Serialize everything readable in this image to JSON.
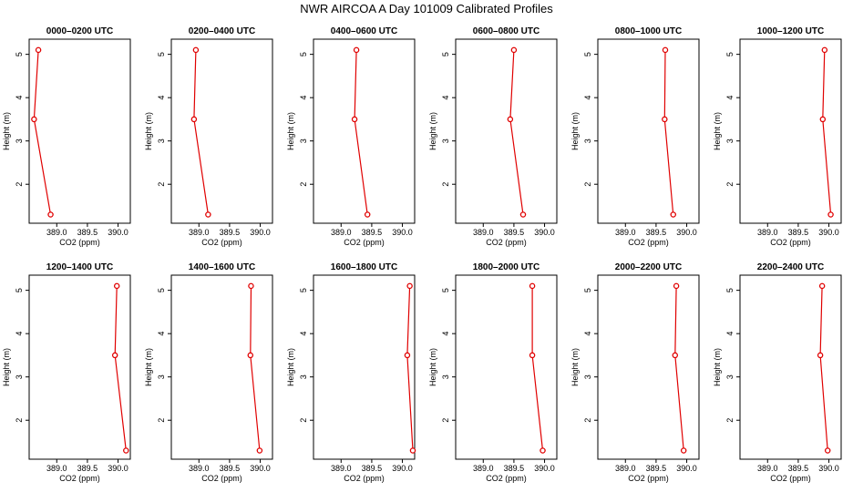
{
  "title": "NWR AIRCOA A  Day 101009  Calibrated Profiles",
  "chart_data": {
    "type": "line",
    "xlabel": "CO2 (ppm)",
    "ylabel": "Height (m)",
    "xlim": [
      388.55,
      390.2
    ],
    "ylim": [
      1.1,
      5.35
    ],
    "xticks": [
      "389.0",
      "389.5",
      "390.0"
    ],
    "yticks": [
      "2",
      "3",
      "4",
      "5"
    ],
    "panels": [
      {
        "title": "0000–0200 UTC",
        "points": [
          [
            388.7,
            5.1
          ],
          [
            388.63,
            3.5
          ],
          [
            388.9,
            1.3
          ]
        ]
      },
      {
        "title": "0200–0400 UTC",
        "points": [
          [
            388.95,
            5.1
          ],
          [
            388.92,
            3.5
          ],
          [
            389.15,
            1.3
          ]
        ]
      },
      {
        "title": "0400–0600 UTC",
        "points": [
          [
            389.25,
            5.1
          ],
          [
            389.22,
            3.5
          ],
          [
            389.43,
            1.3
          ]
        ]
      },
      {
        "title": "0600–0800 UTC",
        "points": [
          [
            389.5,
            5.1
          ],
          [
            389.44,
            3.5
          ],
          [
            389.65,
            1.3
          ]
        ]
      },
      {
        "title": "0800–1000 UTC",
        "points": [
          [
            389.65,
            5.1
          ],
          [
            389.64,
            3.5
          ],
          [
            389.78,
            1.3
          ]
        ]
      },
      {
        "title": "1000–1200 UTC",
        "points": [
          [
            389.93,
            5.1
          ],
          [
            389.9,
            3.5
          ],
          [
            390.03,
            1.3
          ]
        ]
      },
      {
        "title": "1200–1400 UTC",
        "points": [
          [
            389.98,
            5.1
          ],
          [
            389.95,
            3.5
          ],
          [
            390.13,
            1.3
          ]
        ]
      },
      {
        "title": "1400–1600 UTC",
        "points": [
          [
            389.85,
            5.1
          ],
          [
            389.84,
            3.5
          ],
          [
            389.99,
            1.3
          ]
        ]
      },
      {
        "title": "1600–1800 UTC",
        "points": [
          [
            390.12,
            5.1
          ],
          [
            390.08,
            3.5
          ],
          [
            390.17,
            1.3
          ]
        ]
      },
      {
        "title": "1800–2000 UTC",
        "points": [
          [
            389.8,
            5.1
          ],
          [
            389.8,
            3.5
          ],
          [
            389.97,
            1.3
          ]
        ]
      },
      {
        "title": "2000–2200 UTC",
        "points": [
          [
            389.83,
            5.1
          ],
          [
            389.81,
            3.5
          ],
          [
            389.95,
            1.3
          ]
        ]
      },
      {
        "title": "2200–2400 UTC",
        "points": [
          [
            389.89,
            5.1
          ],
          [
            389.86,
            3.5
          ],
          [
            389.98,
            1.3
          ]
        ]
      }
    ],
    "colors": {
      "series": "#e00000",
      "marker_fill": "#ffffff",
      "axes": "#000000"
    }
  }
}
